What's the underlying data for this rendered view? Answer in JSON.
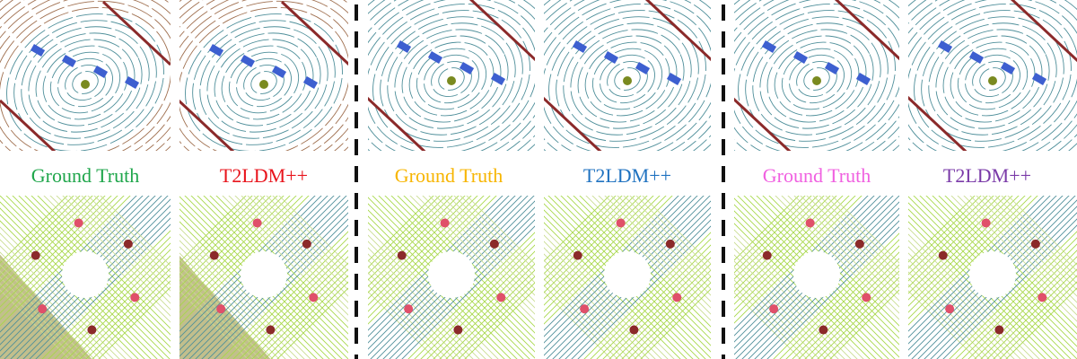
{
  "labels": [
    {
      "text": "Ground Truth",
      "color": "#1fa64b"
    },
    {
      "text": "T2LDM++",
      "color": "#e8141c"
    },
    {
      "text": "Ground Truth",
      "color": "#f7b500"
    },
    {
      "text": "T2LDM++",
      "color": "#1f72c0"
    },
    {
      "text": "Ground Truth",
      "color": "#f060e0"
    },
    {
      "text": "T2LDM++",
      "color": "#7a3aa8"
    }
  ]
}
